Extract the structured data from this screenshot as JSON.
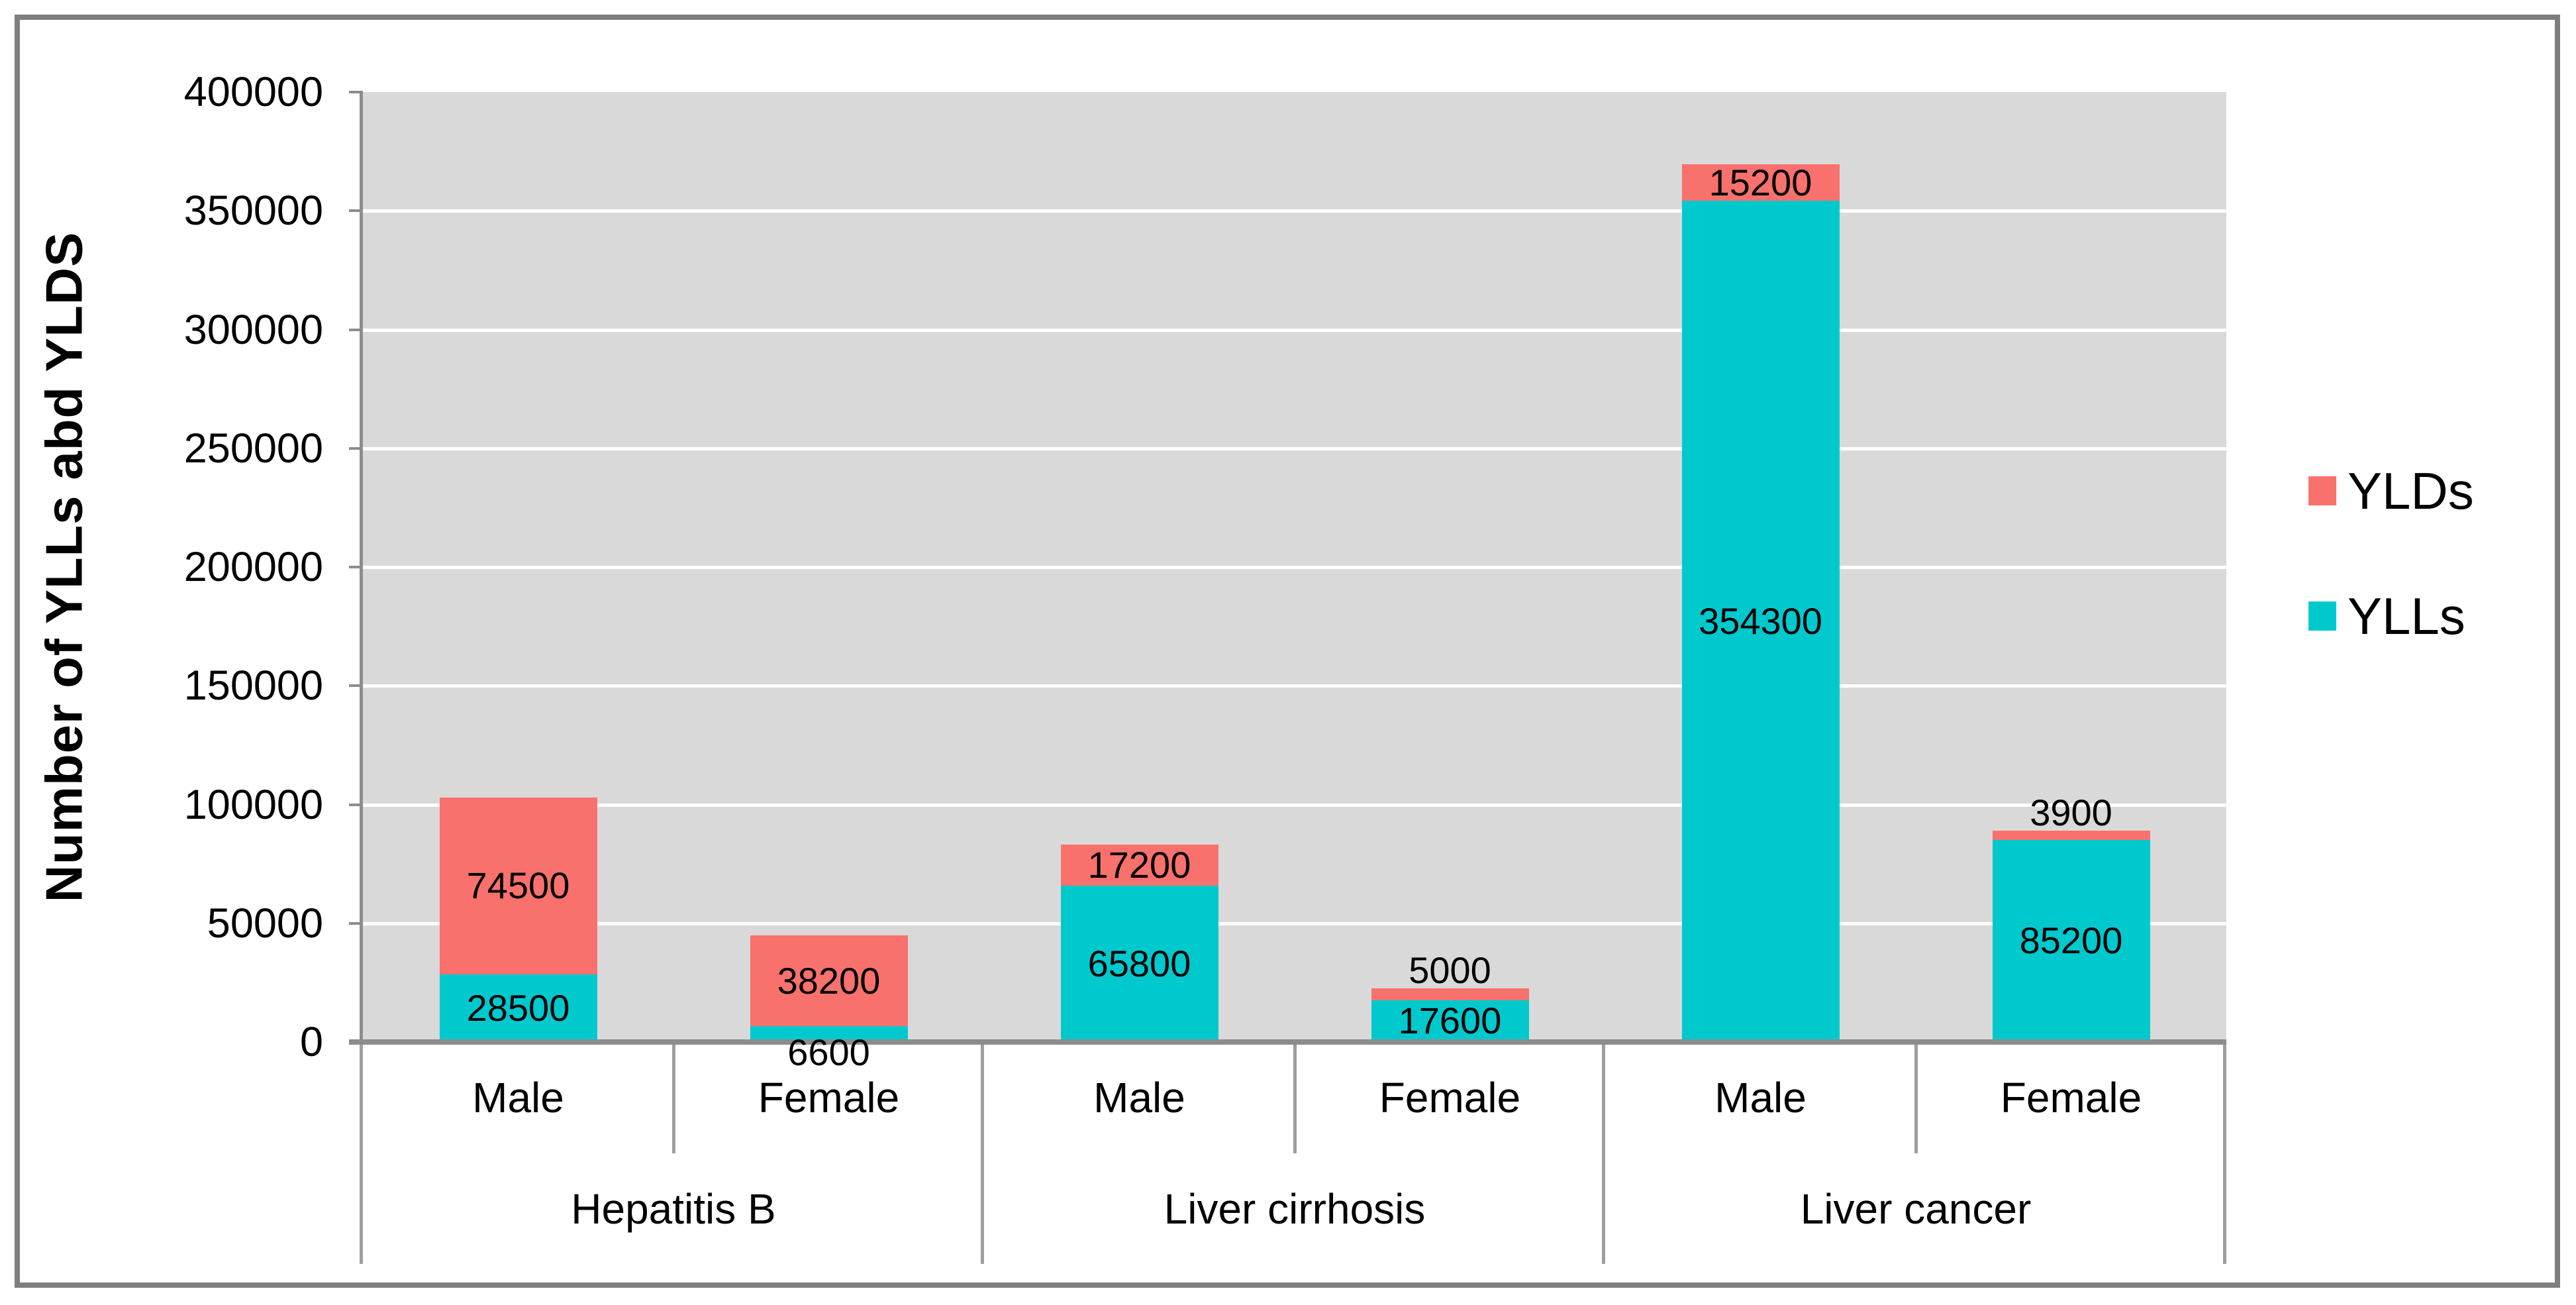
{
  "y_axis": {
    "title": "Number of YLLs abd YLDS",
    "ticks": [
      "400000",
      "350000",
      "300000",
      "250000",
      "200000",
      "150000",
      "100000",
      "50000",
      "0"
    ]
  },
  "x_axis": {
    "groups": [
      {
        "label": "Hepatitis B",
        "sexes": [
          "Male",
          "Female"
        ]
      },
      {
        "label": "Liver cirrhosis",
        "sexes": [
          "Male",
          "Female"
        ]
      },
      {
        "label": "Liver cancer",
        "sexes": [
          "Male",
          "Female"
        ]
      }
    ]
  },
  "legend": {
    "items": [
      {
        "label": "YLDs",
        "color": "#f9716c"
      },
      {
        "label": "YLLs",
        "color": "#00c9ce"
      }
    ]
  },
  "chart_data": {
    "type": "bar",
    "stacked": true,
    "title": "",
    "ylabel": "Number of YLLs abd YLDS",
    "xlabel": "",
    "ylim": [
      0,
      400000
    ],
    "ytick_step": 50000,
    "grid": true,
    "legend_position": "right",
    "plot_bg": "#d9d9d9",
    "data_labels": true,
    "categories": [
      "Hepatitis B Male",
      "Hepatitis B Female",
      "Liver cirrhosis Male",
      "Liver cirrhosis Female",
      "Liver cancer Male",
      "Liver cancer Female"
    ],
    "series": [
      {
        "name": "YLLs",
        "color": "#00c9ce",
        "values": [
          28500,
          6600,
          65800,
          17600,
          354300,
          85200
        ]
      },
      {
        "name": "YLDs",
        "color": "#f9716c",
        "values": [
          74500,
          38200,
          17200,
          5000,
          15200,
          3900
        ]
      }
    ]
  }
}
